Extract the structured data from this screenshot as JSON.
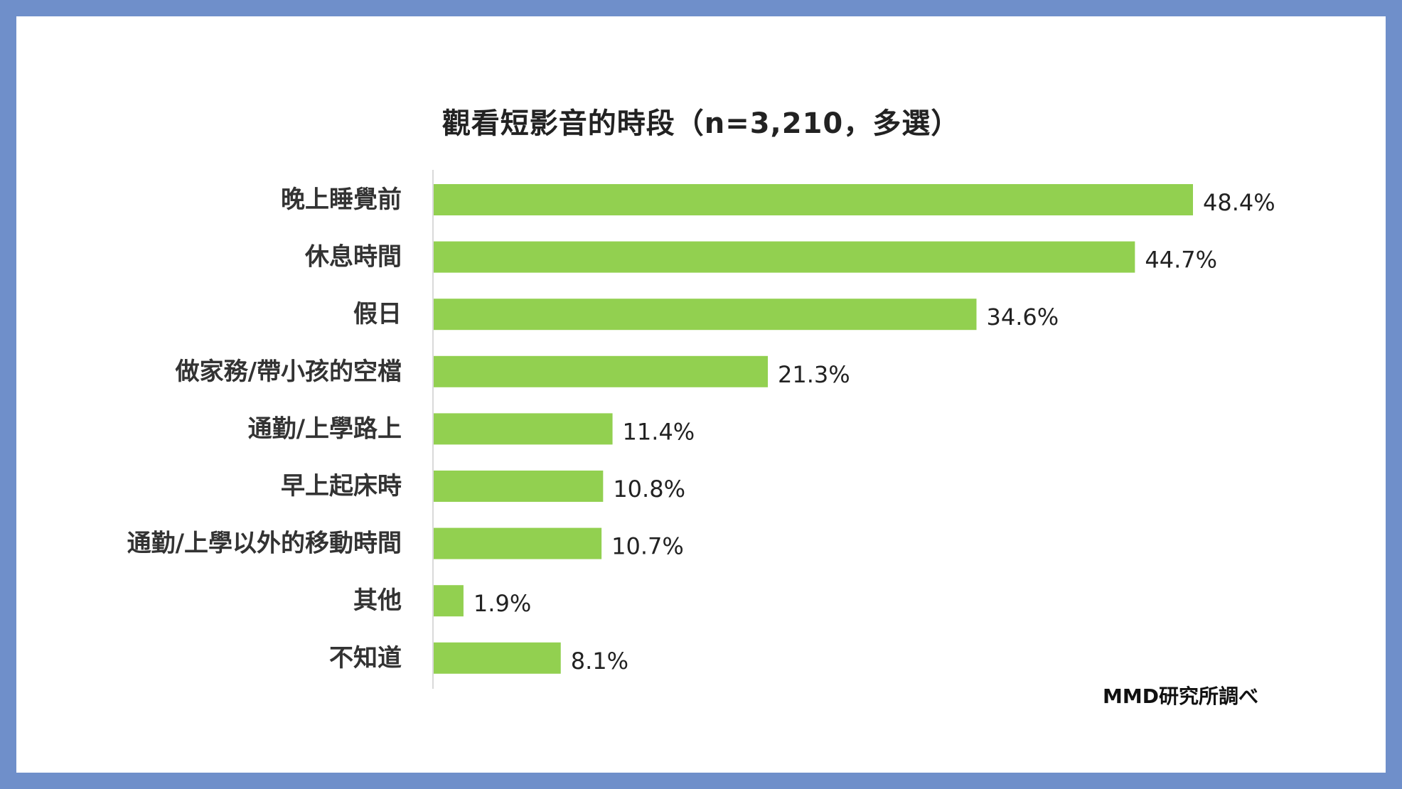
{
  "chart_data": {
    "type": "bar",
    "orientation": "horizontal",
    "title": "觀看短影音的時段（n=3,210，多選）",
    "categories": [
      "晚上睡覺前",
      "休息時間",
      "假日",
      "做家務/帶小孩的空檔",
      "通勤/上學路上",
      "早上起床時",
      "通勤/上學以外的移動時間",
      "其他",
      "不知道"
    ],
    "values": [
      48.4,
      44.7,
      34.6,
      21.3,
      11.4,
      10.8,
      10.7,
      1.9,
      8.1
    ],
    "value_labels": [
      "48.4%",
      "44.7%",
      "34.6%",
      "21.3%",
      "11.4%",
      "10.8%",
      "10.7%",
      "1.9%",
      "8.1%"
    ],
    "unit": "%",
    "xlim": [
      0,
      60
    ],
    "grid": false,
    "bar_color": "#92d050",
    "source": "MMD研究所調べ"
  }
}
